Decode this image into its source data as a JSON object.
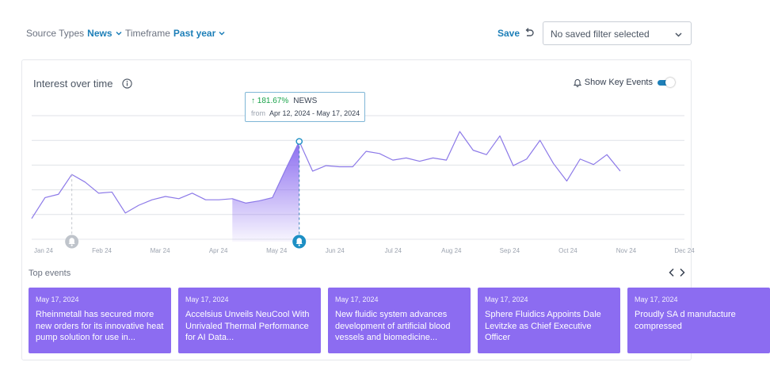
{
  "filters": {
    "source_types": {
      "label": "Source Types",
      "value": "News"
    },
    "timeframe": {
      "label": "Timeframe",
      "value": "Past year"
    }
  },
  "toolbar": {
    "save_label": "Save",
    "undo_icon": "undo-icon",
    "saved_filter": {
      "value": "No saved filter selected"
    }
  },
  "card": {
    "title": "Interest over time",
    "show_key_events_label": "Show Key Events",
    "show_key_events_on": true
  },
  "tooltip": {
    "change": "181.67%",
    "category": "NEWS",
    "from_label": "from",
    "range": "Apr 12, 2024 - May 17, 2024"
  },
  "chart_data": {
    "type": "area",
    "x_ticks": [
      "Jan 24",
      "Feb 24",
      "Mar 24",
      "Apr 24",
      "May 24",
      "Jun 24",
      "Jul 24",
      "Aug 24",
      "Sep 24",
      "Oct 24",
      "Nov 24",
      "Dec 24"
    ],
    "y_range": [
      0,
      100
    ],
    "grid": true,
    "y_values": [
      21,
      40,
      43,
      61,
      54,
      44,
      45,
      26,
      33,
      38,
      41,
      39,
      44,
      38,
      38,
      39,
      35,
      37,
      40,
      66,
      91,
      64,
      69,
      68,
      68,
      82,
      80,
      74,
      76,
      73,
      76,
      74,
      100,
      83,
      79,
      96,
      69,
      75,
      92,
      71,
      55,
      75,
      70,
      79,
      64
    ],
    "highlight_range": [
      15,
      20
    ],
    "key_event_markers": [
      3,
      20
    ],
    "line_color": "#8c79e8",
    "fill_color": "#8b6cf0",
    "marker_active_color": "#1d8fc4",
    "marker_inactive_color": "#bfc4cb"
  },
  "events": {
    "title": "Top events",
    "items": [
      {
        "date": "May 17, 2024",
        "headline": "Rheinmetall has secured more new orders for its innovative heat pump solution for use in..."
      },
      {
        "date": "May 17, 2024",
        "headline": "Accelsius Unveils NeuCool With Unrivaled Thermal Performance for AI Data..."
      },
      {
        "date": "May 17, 2024",
        "headline": "New fluidic system advances development of artificial blood vessels and biomedicine..."
      },
      {
        "date": "May 17, 2024",
        "headline": "Sphere Fluidics Appoints Dale Levitzke as Chief Executive Officer"
      },
      {
        "date": "May 17, 2024",
        "headline": "Proudly SA d manufacture compressed"
      }
    ]
  }
}
